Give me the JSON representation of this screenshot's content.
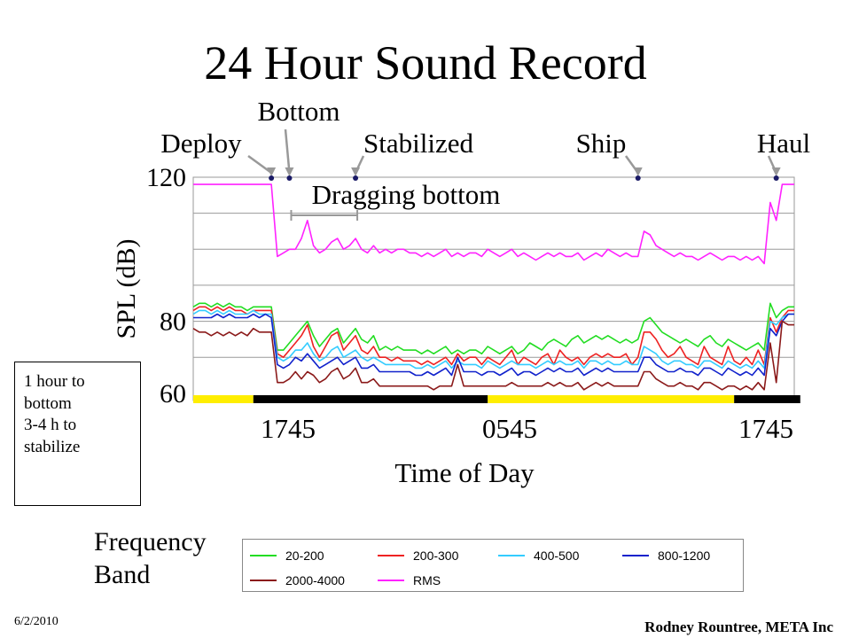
{
  "slide": {
    "title": "24 Hour Sound Record",
    "date": "6/2/2010",
    "author": "Rodney Rountree, META Inc"
  },
  "note": {
    "lines": [
      "1 hour to",
      "bottom",
      "3-4 h to",
      "stabilize"
    ]
  },
  "legend": {
    "title_line1": "Frequency",
    "title_line2": "Band"
  },
  "chart_data": {
    "type": "line",
    "xlabel": "Time of Day",
    "ylabel": "SPL (dB)",
    "ylim": [
      58,
      120
    ],
    "yticks": [
      60,
      80,
      120
    ],
    "grid": true,
    "x_tick_labels": [
      "1745",
      "0545",
      "1745"
    ],
    "time_bar": [
      {
        "color": "#ffee00",
        "from": 0,
        "to": 10
      },
      {
        "color": "#000000",
        "from": 10,
        "to": 49
      },
      {
        "color": "#ffee00",
        "from": 49,
        "to": 90
      },
      {
        "color": "#000000",
        "from": 90,
        "to": 101
      }
    ],
    "annotations": [
      {
        "text": "Deploy",
        "index": 13
      },
      {
        "text": "Bottom",
        "index": 16
      },
      {
        "text": "Stabilized",
        "index": 27
      },
      {
        "text": "Ship",
        "index": 74
      },
      {
        "text": "Haul",
        "index": 97
      }
    ],
    "span_annotation": {
      "text": "Dragging bottom",
      "from": 16,
      "to": 27
    },
    "series": [
      {
        "name": "20-200",
        "color": "#22dd22",
        "values": [
          84,
          85,
          85,
          84,
          85,
          84,
          85,
          84,
          84,
          83,
          84,
          84,
          84,
          84,
          72,
          72,
          74,
          76,
          78,
          80,
          76,
          73,
          75,
          77,
          78,
          74,
          76,
          78,
          75,
          74,
          76,
          72,
          73,
          72,
          73,
          72,
          72,
          72,
          71,
          72,
          71,
          72,
          73,
          71,
          72,
          71,
          72,
          72,
          71,
          73,
          72,
          71,
          72,
          73,
          71,
          72,
          74,
          73,
          72,
          74,
          75,
          74,
          73,
          75,
          76,
          74,
          75,
          76,
          75,
          76,
          75,
          74,
          75,
          74,
          75,
          80,
          81,
          79,
          77,
          76,
          75,
          74,
          75,
          74,
          73,
          75,
          76,
          74,
          73,
          75,
          74,
          73,
          72,
          73,
          74,
          72,
          85,
          81,
          83,
          84,
          84
        ]
      },
      {
        "name": "200-300",
        "color": "#ee2222",
        "values": [
          83,
          84,
          84,
          83,
          84,
          83,
          84,
          83,
          83,
          82,
          83,
          83,
          83,
          83,
          71,
          70,
          72,
          74,
          76,
          79,
          73,
          70,
          73,
          76,
          77,
          72,
          74,
          76,
          72,
          71,
          73,
          70,
          70,
          69,
          70,
          69,
          69,
          69,
          68,
          69,
          68,
          69,
          70,
          68,
          71,
          69,
          70,
          70,
          68,
          70,
          69,
          68,
          70,
          72,
          68,
          70,
          69,
          68,
          70,
          71,
          68,
          72,
          70,
          69,
          70,
          68,
          70,
          71,
          70,
          71,
          70,
          70,
          71,
          68,
          70,
          77,
          77,
          75,
          72,
          70,
          71,
          73,
          70,
          69,
          68,
          73,
          70,
          69,
          68,
          73,
          69,
          68,
          70,
          68,
          72,
          68,
          81,
          77,
          81,
          83,
          83
        ]
      },
      {
        "name": "400-500",
        "color": "#33ccff",
        "values": [
          82,
          83,
          83,
          82,
          83,
          82,
          83,
          82,
          82,
          82,
          83,
          82,
          82,
          82,
          70,
          69,
          70,
          72,
          72,
          74,
          71,
          69,
          70,
          72,
          73,
          70,
          71,
          72,
          70,
          69,
          70,
          69,
          68,
          68,
          68,
          68,
          68,
          67,
          67,
          68,
          67,
          68,
          69,
          67,
          69,
          68,
          68,
          68,
          67,
          69,
          68,
          67,
          68,
          69,
          68,
          68,
          68,
          67,
          68,
          69,
          68,
          69,
          68,
          68,
          69,
          67,
          69,
          69,
          68,
          69,
          68,
          68,
          69,
          68,
          68,
          73,
          72,
          71,
          69,
          68,
          69,
          69,
          68,
          68,
          67,
          69,
          69,
          68,
          67,
          69,
          68,
          67,
          68,
          67,
          69,
          67,
          80,
          79,
          81,
          82,
          82
        ]
      },
      {
        "name": "800-1200",
        "color": "#1122cc",
        "values": [
          81,
          81,
          81,
          81,
          82,
          81,
          82,
          81,
          81,
          81,
          82,
          81,
          82,
          81,
          68,
          67,
          68,
          70,
          69,
          71,
          69,
          67,
          68,
          69,
          70,
          68,
          69,
          70,
          67,
          67,
          68,
          66,
          66,
          66,
          66,
          66,
          66,
          65,
          65,
          66,
          65,
          66,
          67,
          65,
          70,
          66,
          66,
          66,
          65,
          66,
          66,
          65,
          66,
          67,
          65,
          66,
          66,
          65,
          66,
          67,
          66,
          67,
          66,
          66,
          67,
          65,
          66,
          67,
          66,
          67,
          66,
          66,
          66,
          66,
          66,
          70,
          70,
          68,
          67,
          66,
          66,
          67,
          66,
          66,
          65,
          67,
          67,
          66,
          65,
          67,
          66,
          65,
          66,
          65,
          67,
          65,
          78,
          76,
          80,
          82,
          82
        ]
      },
      {
        "name": "2000-4000",
        "color": "#8b1a1a",
        "values": [
          78,
          77,
          77,
          76,
          77,
          76,
          77,
          76,
          77,
          76,
          78,
          77,
          77,
          77,
          63,
          63,
          64,
          66,
          64,
          66,
          65,
          63,
          64,
          66,
          67,
          64,
          65,
          67,
          63,
          63,
          64,
          62,
          62,
          62,
          62,
          62,
          62,
          62,
          62,
          62,
          61,
          62,
          62,
          62,
          68,
          62,
          62,
          62,
          62,
          62,
          62,
          62,
          62,
          63,
          62,
          62,
          62,
          62,
          62,
          63,
          62,
          63,
          62,
          62,
          63,
          61,
          62,
          63,
          62,
          63,
          62,
          62,
          62,
          62,
          62,
          66,
          66,
          64,
          63,
          62,
          62,
          63,
          62,
          62,
          61,
          63,
          63,
          62,
          61,
          62,
          62,
          61,
          62,
          61,
          63,
          61,
          74,
          63,
          80,
          79,
          79
        ]
      },
      {
        "name": "RMS",
        "color": "#ff22ff",
        "values": [
          118,
          118,
          118,
          118,
          118,
          118,
          118,
          118,
          118,
          118,
          118,
          118,
          118,
          118,
          98,
          99,
          100,
          100,
          103,
          108,
          101,
          99,
          100,
          102,
          103,
          100,
          101,
          103,
          100,
          99,
          101,
          99,
          100,
          99,
          100,
          100,
          99,
          99,
          98,
          99,
          98,
          99,
          100,
          98,
          99,
          98,
          99,
          99,
          98,
          100,
          99,
          98,
          99,
          100,
          98,
          99,
          98,
          97,
          98,
          99,
          98,
          99,
          98,
          98,
          99,
          97,
          98,
          99,
          98,
          100,
          99,
          98,
          99,
          98,
          98,
          105,
          104,
          101,
          100,
          99,
          98,
          99,
          98,
          98,
          97,
          98,
          99,
          98,
          97,
          98,
          98,
          97,
          98,
          97,
          98,
          96,
          113,
          108,
          118,
          118,
          118
        ]
      }
    ]
  }
}
